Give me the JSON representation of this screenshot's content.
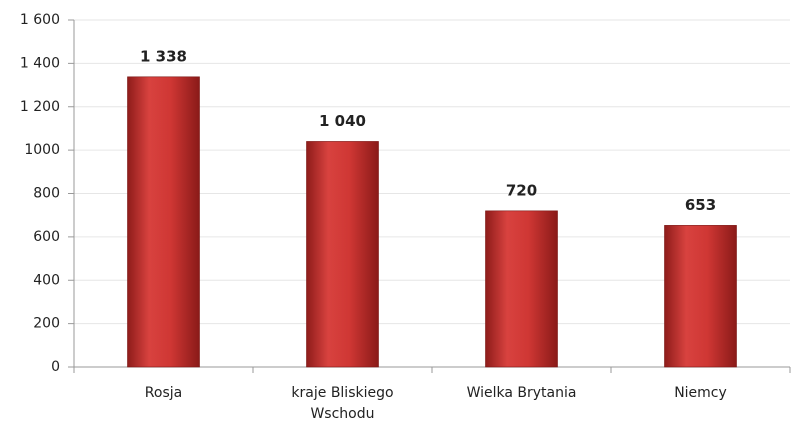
{
  "chart_data": {
    "type": "bar",
    "categories": [
      "Rosja",
      "kraje Bliskiego Wschodu",
      "Wielka Brytania",
      "Niemcy"
    ],
    "values": [
      1338,
      1040,
      720,
      653
    ],
    "value_labels": [
      "1 338",
      "1 040",
      "720",
      "653"
    ],
    "color": "#c8302e",
    "ylim": [
      0,
      1600
    ],
    "yticks": [
      0,
      200,
      400,
      600,
      800,
      1000,
      {
        "value": 1200,
        "label": "1 200"
      },
      {
        "value": 1400,
        "label": "1 400"
      },
      {
        "value": 1600,
        "label": "1 600"
      }
    ],
    "grid": true
  }
}
